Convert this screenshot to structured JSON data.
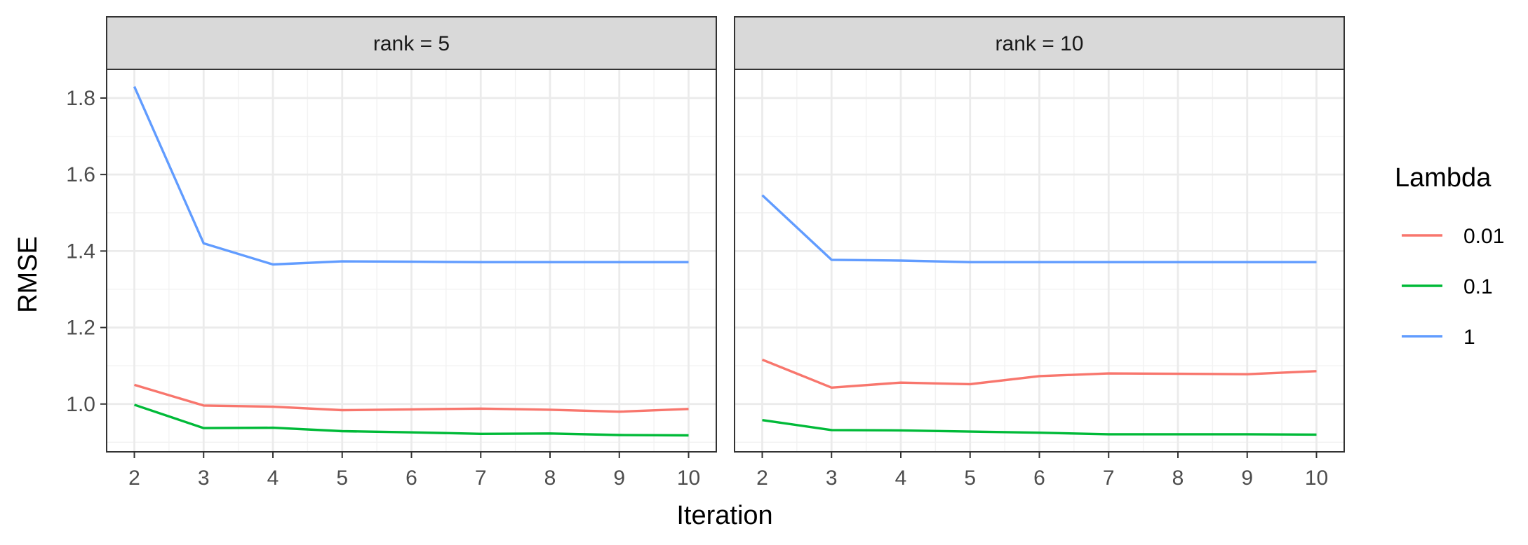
{
  "chart_data": {
    "type": "line",
    "xlabel": "Iteration",
    "ylabel": "RMSE",
    "x": [
      2,
      3,
      4,
      5,
      6,
      7,
      8,
      9,
      10
    ],
    "xlim": [
      1.6,
      10.4
    ],
    "ylim": [
      0.875,
      1.875
    ],
    "y_ticks": [
      "1.0",
      "1.2",
      "1.4",
      "1.6",
      "1.8"
    ],
    "grid": true,
    "legend": {
      "title": "Lambda",
      "placement": "right",
      "entries": [
        {
          "label": "0.01",
          "color": "#F8766D"
        },
        {
          "label": "0.1",
          "color": "#00BA38"
        },
        {
          "label": "1",
          "color": "#619CFF"
        }
      ]
    },
    "panels": [
      {
        "strip": "rank = 5",
        "series": [
          {
            "name": "0.01",
            "color": "#F8766D",
            "values": [
              1.05,
              0.996,
              0.993,
              0.984,
              0.986,
              0.988,
              0.985,
              0.98,
              0.987
            ]
          },
          {
            "name": "0.1",
            "color": "#00BA38",
            "values": [
              0.998,
              0.937,
              0.938,
              0.929,
              0.926,
              0.922,
              0.923,
              0.919,
              0.918
            ]
          },
          {
            "name": "1",
            "color": "#619CFF",
            "values": [
              1.83,
              1.42,
              1.365,
              1.373,
              1.372,
              1.371,
              1.371,
              1.371,
              1.371
            ]
          }
        ]
      },
      {
        "strip": "rank = 10",
        "series": [
          {
            "name": "0.01",
            "color": "#F8766D",
            "values": [
              1.116,
              1.043,
              1.056,
              1.052,
              1.073,
              1.08,
              1.079,
              1.078,
              1.086
            ]
          },
          {
            "name": "0.1",
            "color": "#00BA38",
            "values": [
              0.958,
              0.932,
              0.931,
              0.928,
              0.925,
              0.921,
              0.921,
              0.921,
              0.92
            ]
          },
          {
            "name": "1",
            "color": "#619CFF",
            "values": [
              1.546,
              1.377,
              1.375,
              1.371,
              1.371,
              1.371,
              1.371,
              1.371,
              1.371
            ]
          }
        ]
      }
    ]
  }
}
